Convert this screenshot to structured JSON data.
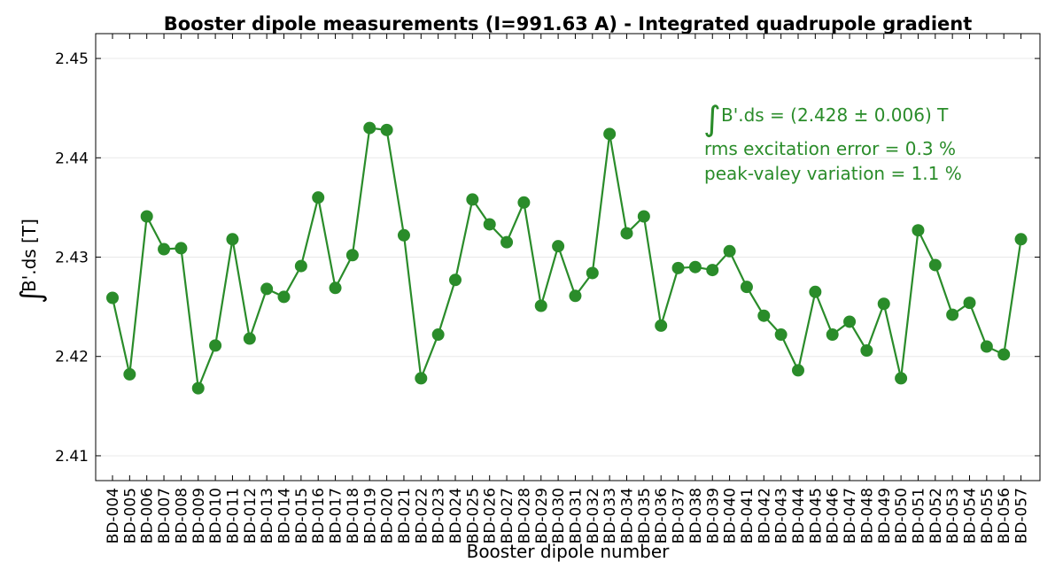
{
  "chart_data": {
    "type": "line",
    "title": "Booster dipole measurements (I=991.63 A) - Integrated quadrupole gradient",
    "xlabel": "Booster dipole number",
    "ylabel": "B'.ds [T]",
    "ylim": [
      2.4075,
      2.4525
    ],
    "yticks": [
      "2.41",
      "2.42",
      "2.43",
      "2.44",
      "2.45"
    ],
    "ytick_values": [
      2.41,
      2.42,
      2.43,
      2.44,
      2.45
    ],
    "grid": "horizontal",
    "color": "#2a8c2a",
    "categories": [
      "BD-004",
      "BD-005",
      "BD-006",
      "BD-007",
      "BD-008",
      "BD-009",
      "BD-010",
      "BD-011",
      "BD-012",
      "BD-013",
      "BD-014",
      "BD-015",
      "BD-016",
      "BD-017",
      "BD-018",
      "BD-019",
      "BD-020",
      "BD-021",
      "BD-022",
      "BD-023",
      "BD-024",
      "BD-025",
      "BD-026",
      "BD-027",
      "BD-028",
      "BD-029",
      "BD-030",
      "BD-031",
      "BD-032",
      "BD-033",
      "BD-034",
      "BD-035",
      "BD-036",
      "BD-037",
      "BD-038",
      "BD-039",
      "BD-040",
      "BD-041",
      "BD-042",
      "BD-043",
      "BD-044",
      "BD-045",
      "BD-046",
      "BD-047",
      "BD-048",
      "BD-049",
      "BD-050",
      "BD-051",
      "BD-052",
      "BD-053",
      "BD-054",
      "BD-055",
      "BD-056",
      "BD-057"
    ],
    "values": [
      2.4259,
      2.4182,
      2.4341,
      2.4308,
      2.4309,
      2.4168,
      2.4211,
      2.4318,
      2.4218,
      2.4268,
      2.426,
      2.4291,
      2.436,
      2.4269,
      2.4302,
      2.443,
      2.4428,
      2.4322,
      2.4178,
      2.4222,
      2.4277,
      2.4358,
      2.4333,
      2.4315,
      2.4355,
      2.4251,
      2.4311,
      2.4261,
      2.4284,
      2.4424,
      2.4324,
      2.4341,
      2.4231,
      2.4289,
      2.429,
      2.4287,
      2.4306,
      2.427,
      2.4241,
      2.4222,
      2.4186,
      2.4265,
      2.4222,
      2.4235,
      2.4206,
      2.4253,
      2.4178,
      2.4327,
      2.4292,
      2.4242,
      2.4254,
      2.421,
      2.4202,
      2.4318
    ],
    "annotations": [
      "B'.ds = (2.428 ± 0.006) T",
      "rms excitation error = 0.3 %",
      "peak-valey variation = 1.1 %"
    ]
  }
}
